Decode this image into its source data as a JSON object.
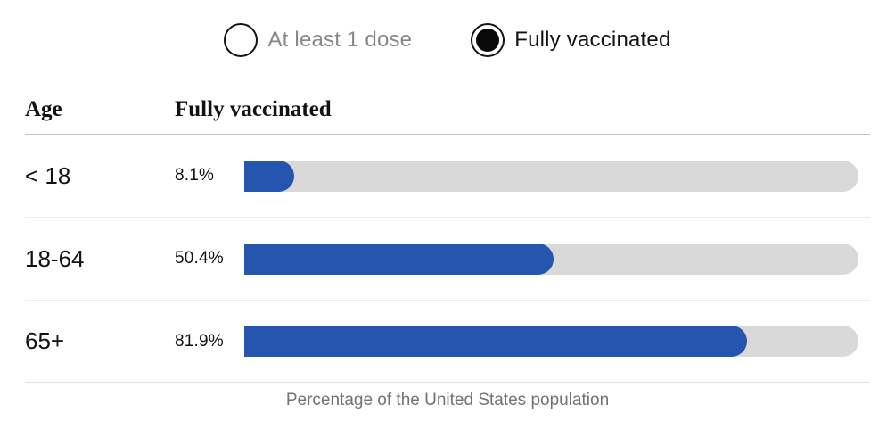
{
  "toggle": {
    "options": [
      {
        "label": "At least 1 dose",
        "selected": false
      },
      {
        "label": "Fully vaccinated",
        "selected": true
      }
    ]
  },
  "table": {
    "col_age": "Age",
    "col_value": "Fully vaccinated",
    "rows": [
      {
        "age": "< 18",
        "value": "8.1%",
        "percent": 8.1
      },
      {
        "age": "18-64",
        "value": "50.4%",
        "percent": 50.4
      },
      {
        "age": "65+",
        "value": "81.9%",
        "percent": 81.9
      }
    ]
  },
  "footer": {
    "caption": "Percentage of the United States population"
  },
  "colors": {
    "bar_fill": "#2455af",
    "bar_track": "#d9d9d9",
    "selected_text": "#121212",
    "unselected_text": "#87888a"
  },
  "chart_data": {
    "type": "bar",
    "orientation": "horizontal",
    "title": "Fully vaccinated",
    "categories": [
      "< 18",
      "18-64",
      "65+"
    ],
    "values": [
      8.1,
      50.4,
      81.9
    ],
    "data_labels": [
      "8.1%",
      "50.4%",
      "81.9%"
    ],
    "xlabel": "Percentage of the United States population",
    "ylabel": "Age",
    "xlim": [
      0,
      100
    ],
    "grid": false,
    "legend_position": "none"
  }
}
